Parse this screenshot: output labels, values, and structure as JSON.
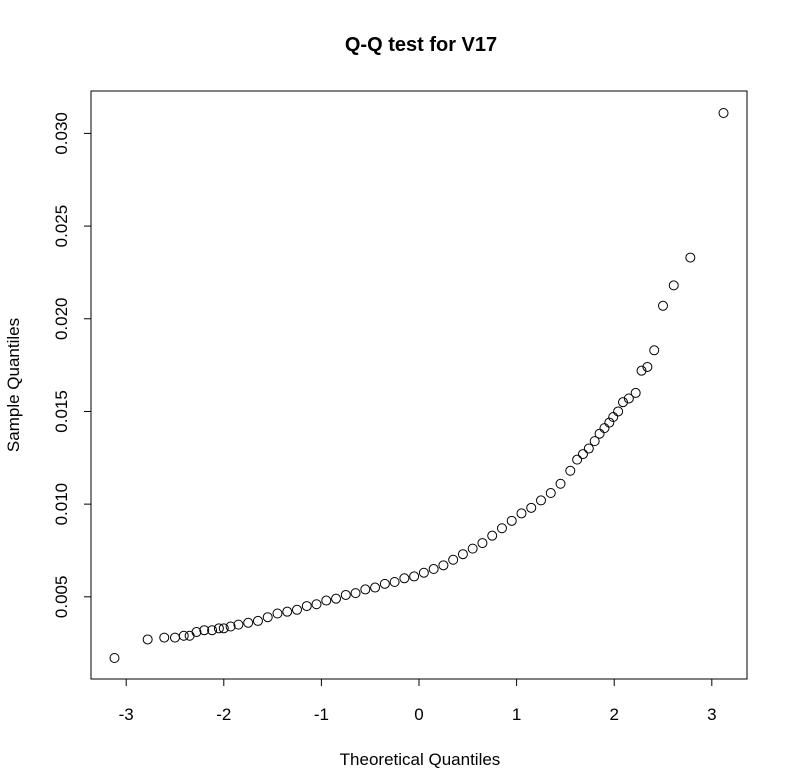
{
  "chart_data": {
    "type": "scatter",
    "title": "Q-Q test for  V17",
    "xlabel": "Theoretical Quantiles",
    "ylabel": "Sample Quantiles",
    "xlim": [
      -3.13,
      3.13
    ],
    "ylim": [
      0.0017,
      0.0311
    ],
    "xticks": [
      -3,
      -2,
      -1,
      0,
      1,
      2,
      3
    ],
    "xtick_labels": [
      "-3",
      "-2",
      "-1",
      "0",
      "1",
      "2",
      "3"
    ],
    "yticks": [
      0.005,
      0.01,
      0.015,
      0.02,
      0.025,
      0.03
    ],
    "ytick_labels": [
      "0.005",
      "0.010",
      "0.015",
      "0.020",
      "0.025",
      "0.030"
    ],
    "grid": false,
    "legend": "none",
    "marker": "open-circle",
    "points": [
      [
        -3.12,
        0.0017
      ],
      [
        -2.78,
        0.0027
      ],
      [
        -2.61,
        0.0028
      ],
      [
        -2.5,
        0.0028
      ],
      [
        -2.41,
        0.0029
      ],
      [
        -2.35,
        0.0029
      ],
      [
        -2.28,
        0.0031
      ],
      [
        -2.2,
        0.0032
      ],
      [
        -2.12,
        0.0032
      ],
      [
        -2.05,
        0.0033
      ],
      [
        -2.0,
        0.0033
      ],
      [
        -1.93,
        0.0034
      ],
      [
        -1.85,
        0.0035
      ],
      [
        -1.75,
        0.0036
      ],
      [
        -1.65,
        0.0037
      ],
      [
        -1.55,
        0.0039
      ],
      [
        -1.45,
        0.0041
      ],
      [
        -1.35,
        0.0042
      ],
      [
        -1.25,
        0.0043
      ],
      [
        -1.15,
        0.0045
      ],
      [
        -1.05,
        0.0046
      ],
      [
        -0.95,
        0.0048
      ],
      [
        -0.85,
        0.0049
      ],
      [
        -0.75,
        0.0051
      ],
      [
        -0.65,
        0.0052
      ],
      [
        -0.55,
        0.0054
      ],
      [
        -0.45,
        0.0055
      ],
      [
        -0.35,
        0.0057
      ],
      [
        -0.25,
        0.0058
      ],
      [
        -0.15,
        0.006
      ],
      [
        -0.05,
        0.0061
      ],
      [
        0.05,
        0.0063
      ],
      [
        0.15,
        0.0065
      ],
      [
        0.25,
        0.0067
      ],
      [
        0.35,
        0.007
      ],
      [
        0.45,
        0.0073
      ],
      [
        0.55,
        0.0076
      ],
      [
        0.65,
        0.0079
      ],
      [
        0.75,
        0.0083
      ],
      [
        0.85,
        0.0087
      ],
      [
        0.95,
        0.0091
      ],
      [
        1.05,
        0.0095
      ],
      [
        1.15,
        0.0098
      ],
      [
        1.25,
        0.0102
      ],
      [
        1.35,
        0.0106
      ],
      [
        1.45,
        0.0111
      ],
      [
        1.55,
        0.0118
      ],
      [
        1.62,
        0.0124
      ],
      [
        1.68,
        0.0127
      ],
      [
        1.74,
        0.013
      ],
      [
        1.8,
        0.0134
      ],
      [
        1.85,
        0.0138
      ],
      [
        1.9,
        0.0141
      ],
      [
        1.95,
        0.0144
      ],
      [
        1.99,
        0.0147
      ],
      [
        2.04,
        0.015
      ],
      [
        2.09,
        0.0155
      ],
      [
        2.15,
        0.0157
      ],
      [
        2.22,
        0.016
      ],
      [
        2.28,
        0.0172
      ],
      [
        2.34,
        0.0174
      ],
      [
        2.41,
        0.0183
      ],
      [
        2.5,
        0.0207
      ],
      [
        2.61,
        0.0218
      ],
      [
        2.78,
        0.0233
      ],
      [
        3.12,
        0.0311
      ]
    ]
  }
}
